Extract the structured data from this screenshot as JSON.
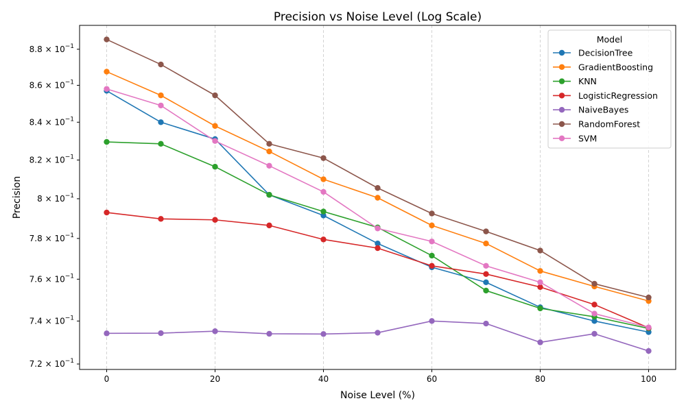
{
  "chart_data": {
    "type": "line",
    "title": "Precision vs Noise Level (Log Scale)",
    "xlabel": "Noise Level (%)",
    "ylabel": "Precision",
    "yscale": "log",
    "xlim": [
      -5,
      105
    ],
    "ylim": [
      0.7175,
      0.8935
    ],
    "x": [
      0,
      10,
      20,
      30,
      40,
      50,
      60,
      70,
      80,
      90,
      100
    ],
    "x_ticks": [
      0,
      20,
      40,
      60,
      80,
      100
    ],
    "x_tick_labels": [
      "0",
      "20",
      "40",
      "60",
      "80",
      "100"
    ],
    "y_ticks": [
      0.72,
      0.74,
      0.76,
      0.78,
      0.8,
      0.82,
      0.84,
      0.86,
      0.88
    ],
    "y_tick_mantissa": [
      "7.2",
      "7.4",
      "7.6",
      "7.8",
      "8",
      "8.2",
      "8.4",
      "8.6",
      "8.8"
    ],
    "y_tick_base": "× 10",
    "y_tick_exponent": "−1",
    "grid": "x-only dashed",
    "legend_title": "Model",
    "legend_position": "top-right",
    "series": [
      {
        "name": "DecisionTree",
        "color": "#1f77b4",
        "values": [
          0.857,
          0.84,
          0.831,
          0.802,
          0.7915,
          0.7775,
          0.7658,
          0.7585,
          0.7465,
          0.74,
          0.7348
        ]
      },
      {
        "name": "GradientBoosting",
        "color": "#ff7f0e",
        "values": [
          0.8675,
          0.8545,
          0.838,
          0.8245,
          0.81,
          0.8005,
          0.7865,
          0.7775,
          0.764,
          0.7565,
          0.7495
        ]
      },
      {
        "name": "KNN",
        "color": "#2ca02c",
        "values": [
          0.8295,
          0.8285,
          0.8165,
          0.802,
          0.7935,
          0.7855,
          0.7715,
          0.7545,
          0.746,
          0.742,
          0.7365
        ]
      },
      {
        "name": "LogisticRegression",
        "color": "#d62728",
        "values": [
          0.793,
          0.7898,
          0.7893,
          0.7865,
          0.7795,
          0.7752,
          0.7665,
          0.7625,
          0.7562,
          0.7478,
          0.7368
        ]
      },
      {
        "name": "NaiveBayes",
        "color": "#9467bd",
        "values": [
          0.7342,
          0.7343,
          0.7352,
          0.734,
          0.7339,
          0.7345,
          0.74,
          0.7388,
          0.73,
          0.734,
          0.726
        ]
      },
      {
        "name": "RandomForest",
        "color": "#8c564b",
        "values": [
          0.8855,
          0.8715,
          0.8545,
          0.8285,
          0.821,
          0.8055,
          0.7925,
          0.7835,
          0.774,
          0.7578,
          0.7512
        ]
      },
      {
        "name": "SVM",
        "color": "#e377c2",
        "values": [
          0.858,
          0.849,
          0.83,
          0.817,
          0.8035,
          0.785,
          0.7785,
          0.7665,
          0.7585,
          0.7435,
          0.737
        ]
      }
    ]
  }
}
